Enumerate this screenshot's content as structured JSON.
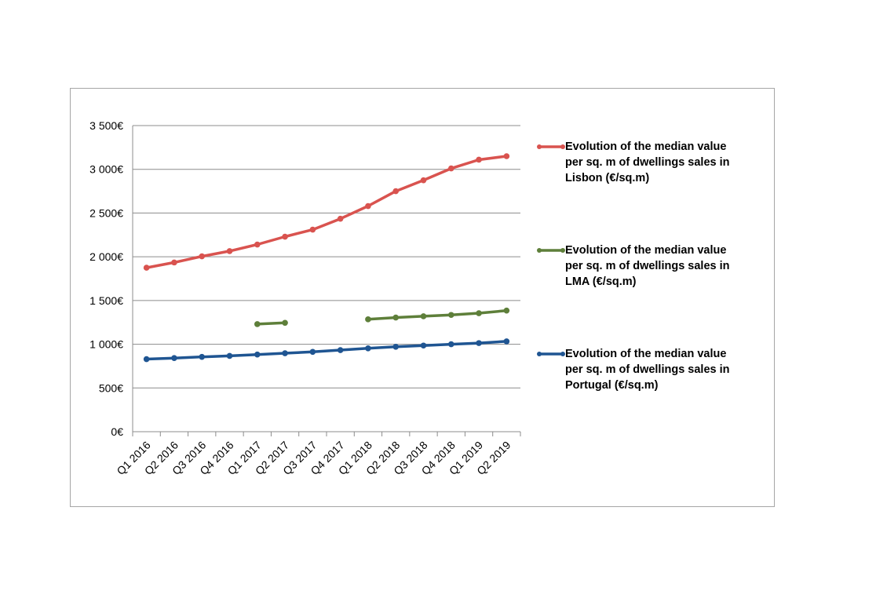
{
  "chart_data": {
    "type": "line",
    "categories": [
      "Q1 2016",
      "Q2 2016",
      "Q3 2016",
      "Q4 2016",
      "Q1 2017",
      "Q2 2017",
      "Q3 2017",
      "Q4 2017",
      "Q1 2018",
      "Q2 2018",
      "Q3 2018",
      "Q4 2018",
      "Q1 2019",
      "Q2 2019"
    ],
    "series": [
      {
        "name": "Evolution of the median value per sq. m of dwellings sales in Lisbon (€/sq.m)",
        "legend_lines": [
          "Evolution of the median value",
          "per sq. m of dwellings sales in",
          "Lisbon (€/sq.m)"
        ],
        "color": "#d9534f",
        "values": [
          1875,
          1935,
          2005,
          2065,
          2140,
          2230,
          2310,
          2435,
          2580,
          2750,
          2875,
          3010,
          3110,
          3150
        ]
      },
      {
        "name": "Evolution of the median value per sq. m of dwellings sales in LMA (€/sq.m)",
        "legend_lines": [
          "Evolution of the median value",
          "per sq. m of dwellings sales in",
          "LMA (€/sq.m)"
        ],
        "color": "#5e7f3a",
        "values": [
          null,
          null,
          null,
          null,
          1230,
          1245,
          null,
          null,
          1285,
          1305,
          1320,
          1335,
          1355,
          1385
        ]
      },
      {
        "name": "Evolution of the median value per sq. m of dwellings sales in Portugal (€/sq.m)",
        "legend_lines": [
          "Evolution of the median value",
          "per sq. m of dwellings sales in",
          "Portugal (€/sq.m)"
        ],
        "color": "#1f5592",
        "values": [
          830,
          842,
          855,
          867,
          882,
          897,
          913,
          933,
          953,
          971,
          985,
          1000,
          1013,
          1033
        ]
      }
    ],
    "y_ticks": [
      0,
      500,
      1000,
      1500,
      2000,
      2500,
      3000,
      3500
    ],
    "y_tick_labels": [
      "0€",
      "500€",
      "1 000€",
      "1 500€",
      "2 000€",
      "2 500€",
      "3 000€",
      "3 500€"
    ],
    "ylim": [
      0,
      3500
    ],
    "grid": true,
    "legend_position": "right",
    "title": "",
    "xlabel": "",
    "ylabel": ""
  }
}
